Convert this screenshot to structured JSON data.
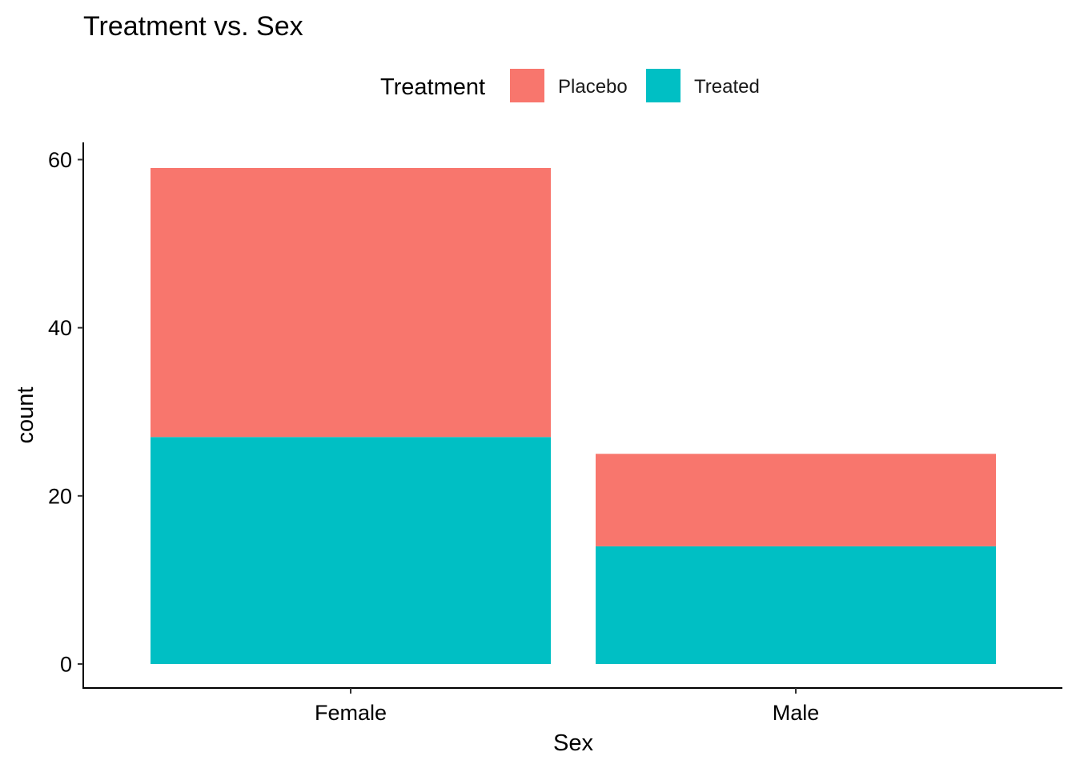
{
  "chart_data": {
    "type": "bar",
    "stacked": true,
    "title": "Treatment vs. Sex",
    "xlabel": "Sex",
    "ylabel": "count",
    "categories": [
      "Female",
      "Male"
    ],
    "series": [
      {
        "name": "Treated",
        "color": "#00BFC4",
        "values": [
          27,
          14
        ]
      },
      {
        "name": "Placebo",
        "color": "#F8766D",
        "values": [
          32,
          11
        ]
      }
    ],
    "legend": {
      "title": "Treatment",
      "position": "top",
      "order": [
        "Placebo",
        "Treated"
      ]
    },
    "ylim": [
      0,
      62
    ],
    "yticks": [
      0,
      20,
      40,
      60
    ],
    "grid": false
  }
}
